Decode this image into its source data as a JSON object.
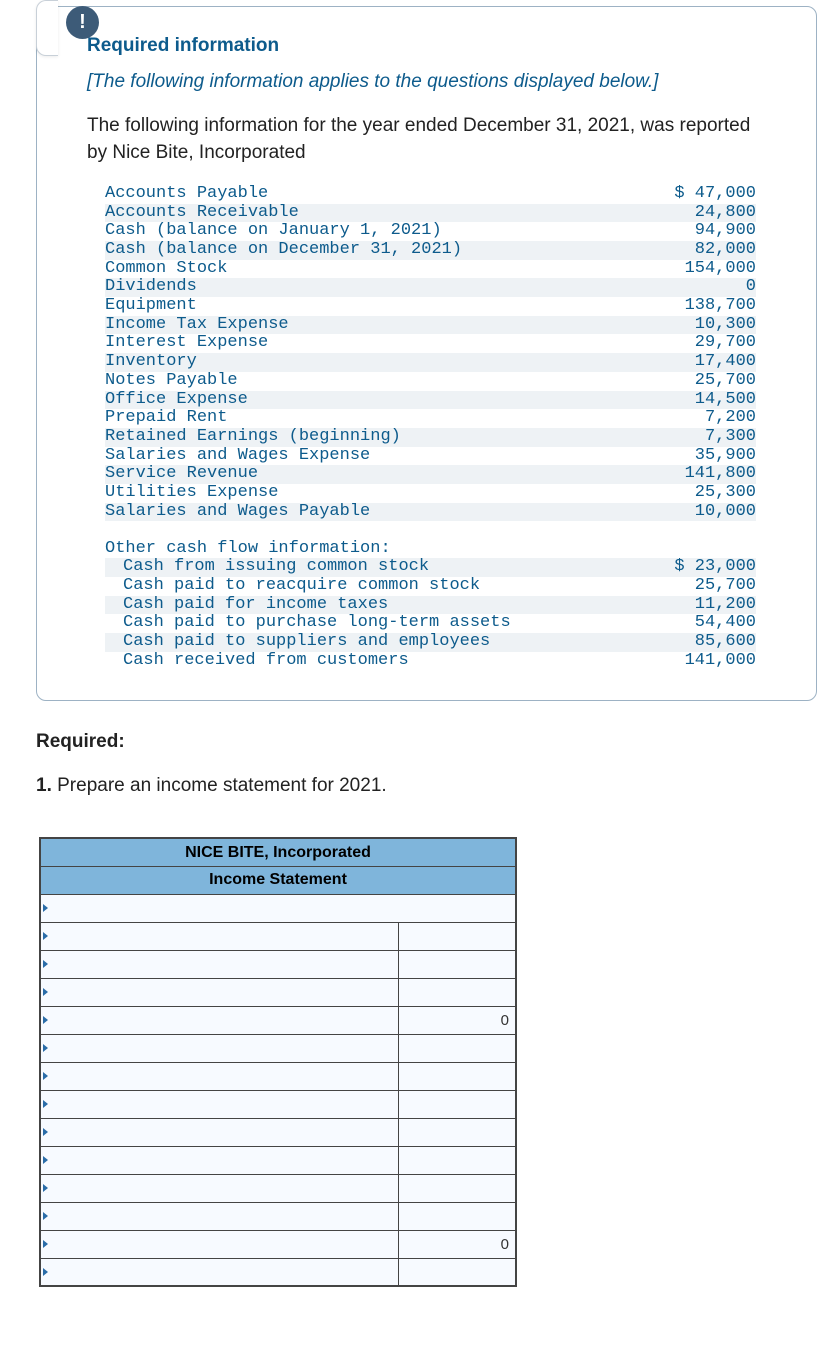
{
  "badge_glyph": "!",
  "info": {
    "title": "Required information",
    "note": "[The following information applies to the questions displayed below.]",
    "intro": "The following information for the year ended December 31, 2021, was reported by Nice Bite, Incorporated"
  },
  "ledger": [
    {
      "label": "Accounts Payable",
      "value": "$ 47,000",
      "shade": false
    },
    {
      "label": "Accounts Receivable",
      "value": "24,800",
      "shade": true
    },
    {
      "label": "Cash (balance on January 1, 2021)",
      "value": "94,900",
      "shade": false
    },
    {
      "label": "Cash (balance on December 31, 2021)",
      "value": "82,000",
      "shade": true
    },
    {
      "label": "Common Stock",
      "value": "154,000",
      "shade": false
    },
    {
      "label": "Dividends",
      "value": "0",
      "shade": true
    },
    {
      "label": "Equipment",
      "value": "138,700",
      "shade": false
    },
    {
      "label": "Income Tax Expense",
      "value": "10,300",
      "shade": true
    },
    {
      "label": "Interest Expense",
      "value": "29,700",
      "shade": false
    },
    {
      "label": "Inventory",
      "value": "17,400",
      "shade": true
    },
    {
      "label": "Notes Payable",
      "value": "25,700",
      "shade": false
    },
    {
      "label": "Office Expense",
      "value": "14,500",
      "shade": true
    },
    {
      "label": "Prepaid Rent",
      "value": "7,200",
      "shade": false
    },
    {
      "label": "Retained Earnings (beginning)",
      "value": "7,300",
      "shade": true
    },
    {
      "label": "Salaries and Wages Expense",
      "value": "35,900",
      "shade": false
    },
    {
      "label": "Service Revenue",
      "value": "141,800",
      "shade": true
    },
    {
      "label": "Utilities Expense",
      "value": "25,300",
      "shade": false
    },
    {
      "label": "Salaries and Wages Payable",
      "value": "10,000",
      "shade": true
    }
  ],
  "cashflow_header": "Other cash flow information:",
  "cashflow": [
    {
      "label": "Cash from issuing common stock",
      "value": "$ 23,000",
      "shade": true
    },
    {
      "label": "Cash paid to reacquire common stock",
      "value": "25,700",
      "shade": false
    },
    {
      "label": "Cash paid for income taxes",
      "value": "11,200",
      "shade": true
    },
    {
      "label": "Cash paid to purchase long-term assets",
      "value": "54,400",
      "shade": false
    },
    {
      "label": "Cash paid to suppliers and employees",
      "value": "85,600",
      "shade": true
    },
    {
      "label": "Cash received from customers",
      "value": "141,000",
      "shade": false
    }
  ],
  "required_label": "Required:",
  "question_num": "1.",
  "question_text": " Prepare an income statement for 2021.",
  "worksheet": {
    "header1": "NICE BITE, Incorporated",
    "header2": "Income Statement",
    "rows": [
      {
        "type": "full",
        "a": ""
      },
      {
        "type": "split",
        "a": "",
        "b": ""
      },
      {
        "type": "split",
        "a": "",
        "b": ""
      },
      {
        "type": "split",
        "a": "",
        "b": ""
      },
      {
        "type": "split",
        "a": "",
        "b": "0"
      },
      {
        "type": "split",
        "a": "",
        "b": ""
      },
      {
        "type": "split",
        "a": "",
        "b": ""
      },
      {
        "type": "split",
        "a": "",
        "b": ""
      },
      {
        "type": "split",
        "a": "",
        "b": ""
      },
      {
        "type": "split",
        "a": "",
        "b": ""
      },
      {
        "type": "split",
        "a": "",
        "b": ""
      },
      {
        "type": "split",
        "a": "",
        "b": ""
      },
      {
        "type": "split",
        "a": "",
        "b": "0"
      },
      {
        "type": "split",
        "a": "",
        "b": ""
      }
    ]
  }
}
